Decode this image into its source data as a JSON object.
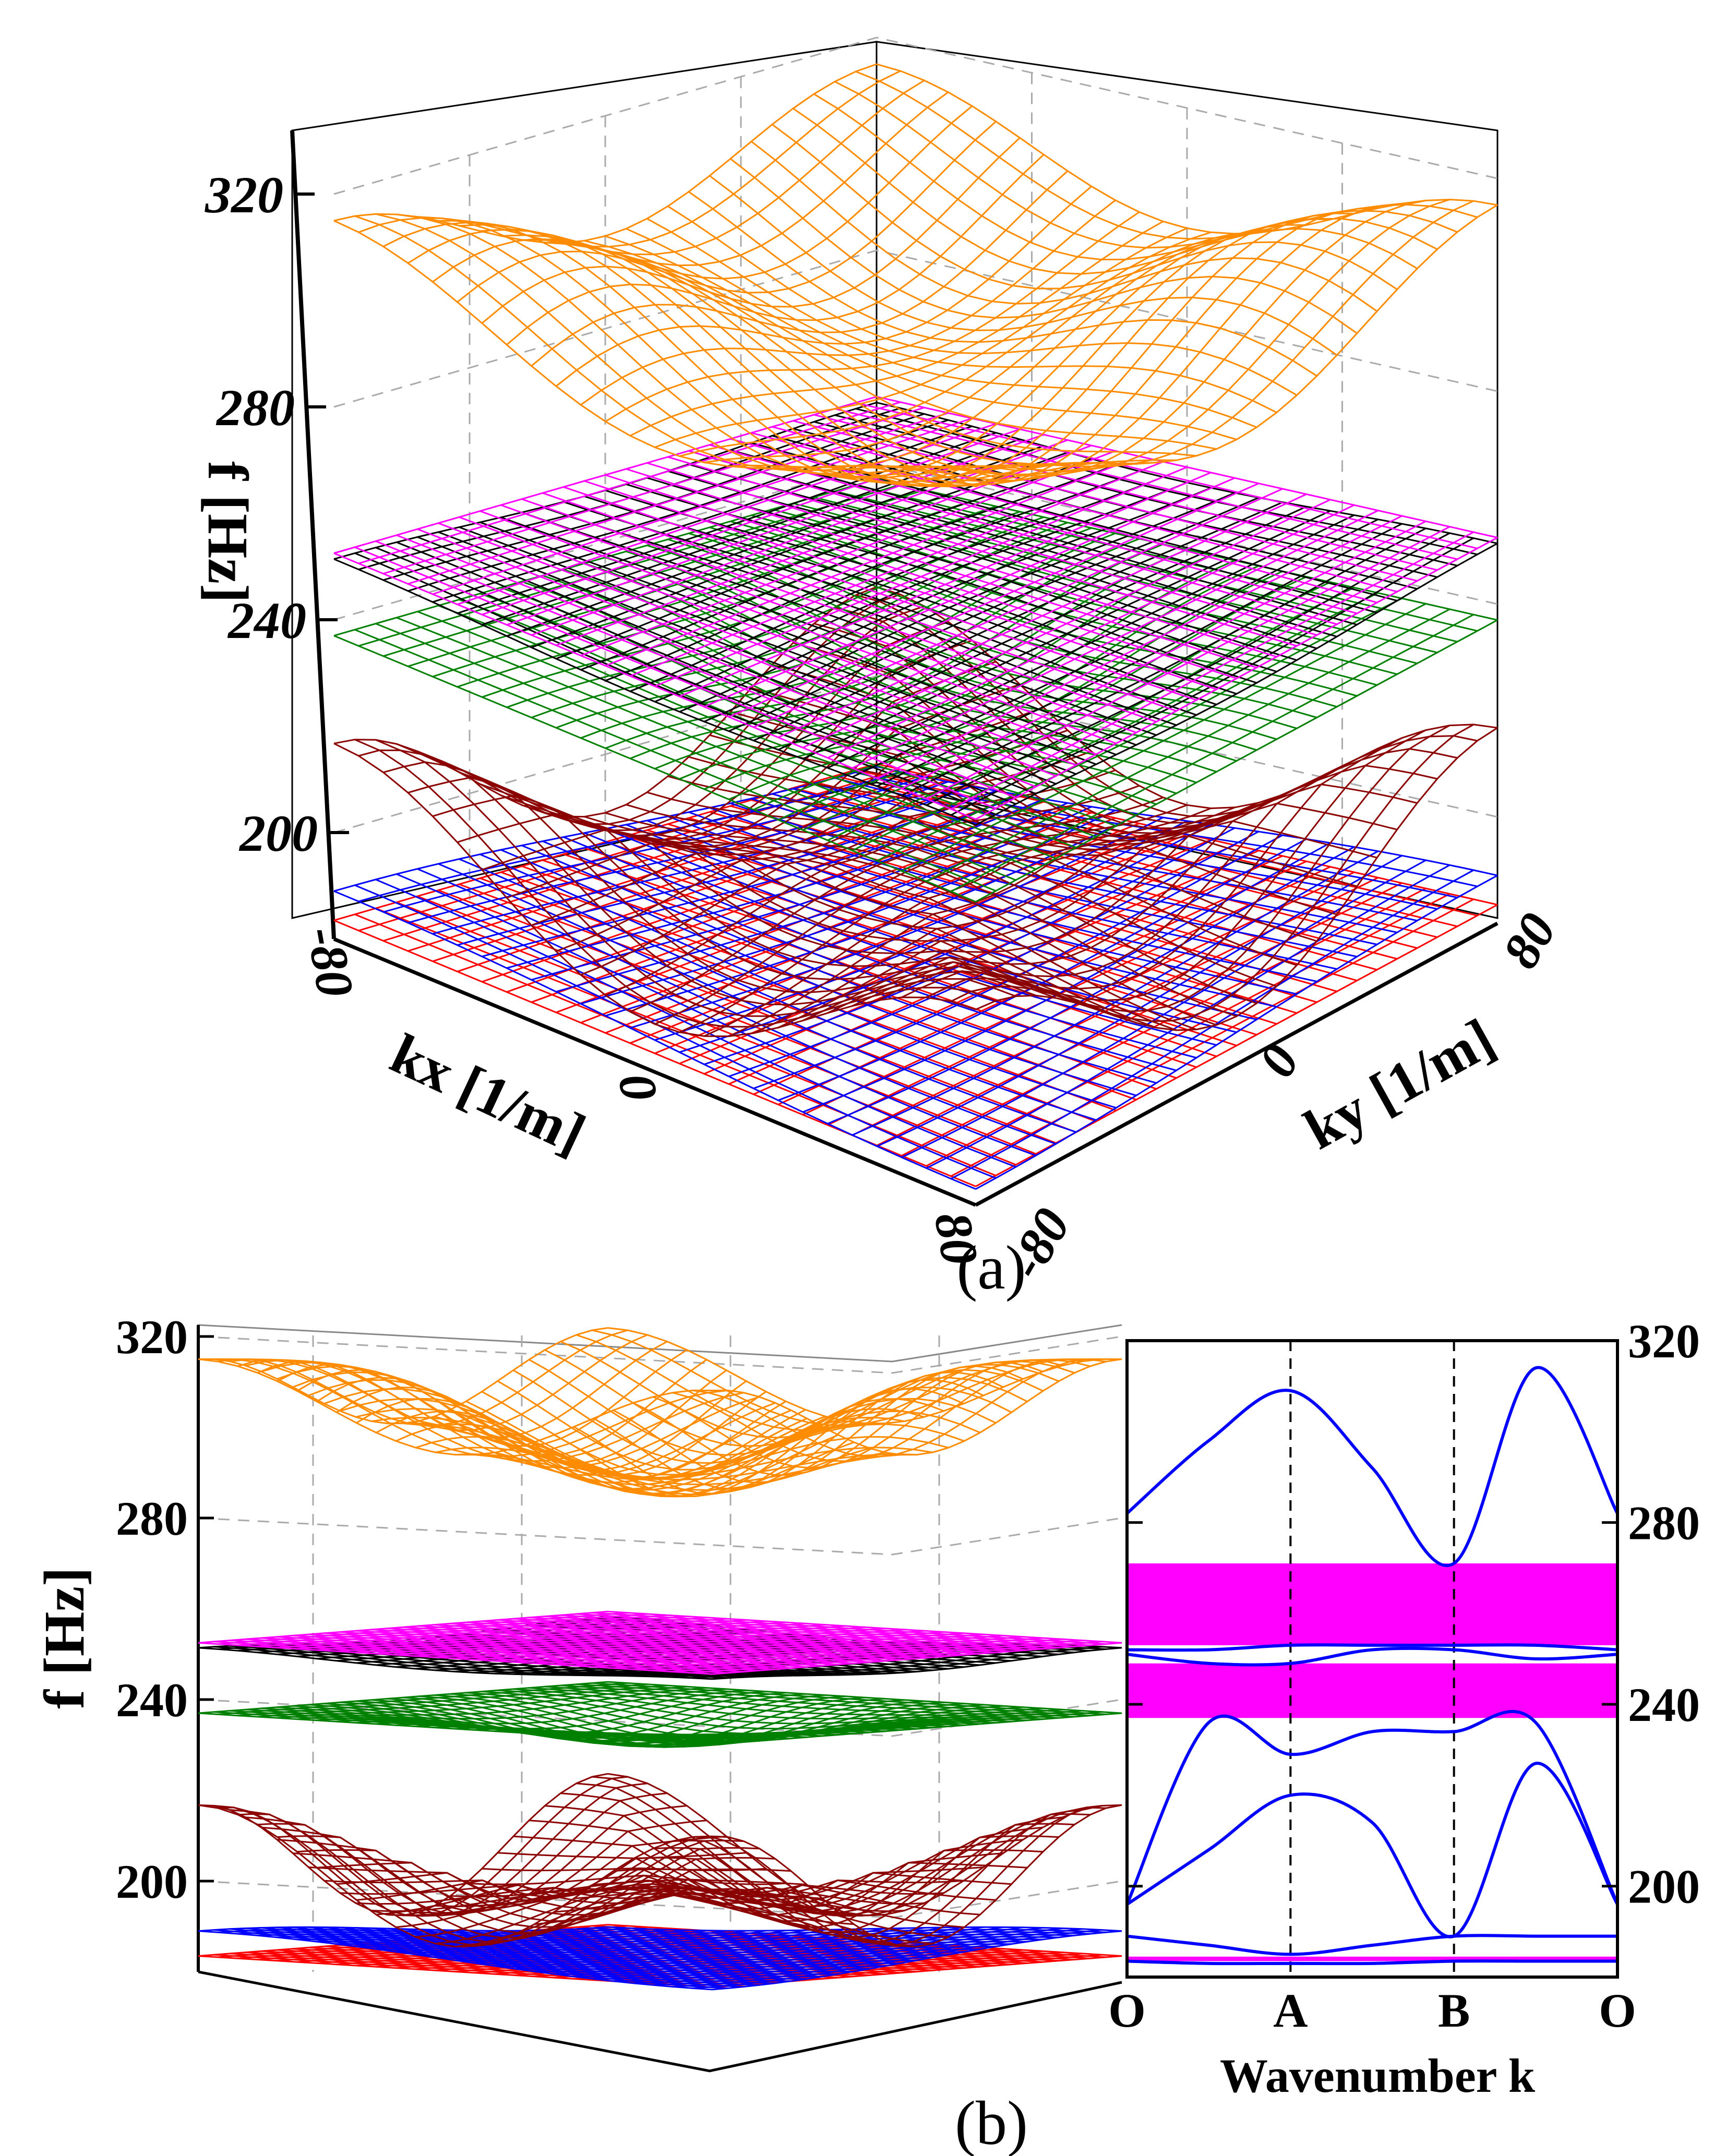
{
  "figure": {
    "panel_a_label": "(a)",
    "panel_b_label": "(b)"
  },
  "chart_data": [
    {
      "type": "surface",
      "panel": "(a)",
      "zlabel": "f [Hz]",
      "xlabel": "kx [1/m]",
      "ylabel": "ky [1/m]",
      "z_ticks": [
        "200",
        "240",
        "280",
        "320"
      ],
      "x_ticks": [
        "-80",
        "0",
        "80"
      ],
      "y_ticks": [
        "-80",
        "0",
        "80"
      ],
      "zlim": [
        180,
        320
      ],
      "xlim": [
        -80,
        80
      ],
      "ylim": [
        -80,
        80
      ],
      "grid": true,
      "series": [
        {
          "color": "#ff0000",
          "min": 183,
          "max": 184
        },
        {
          "color": "#0000ff",
          "min": 183,
          "max": 189
        },
        {
          "color": "#8b0000",
          "min": 189,
          "max": 226
        },
        {
          "color": "#008000",
          "min": 225,
          "max": 237
        },
        {
          "color": "#000000",
          "min": 249,
          "max": 252
        },
        {
          "color": "#ff00ff",
          "min": 252,
          "max": 253
        },
        {
          "color": "#ff8c00",
          "min": 271,
          "max": 315
        }
      ]
    },
    {
      "type": "surface",
      "panel": "(b)",
      "zlabel": "f [Hz]",
      "z_ticks": [
        "200",
        "240",
        "280",
        "320"
      ],
      "zlim": [
        180,
        320
      ],
      "grid": true,
      "view": "side"
    },
    {
      "type": "line",
      "panel": "(b)",
      "xlabel": "Wavenumber k",
      "x_ticks": [
        "O",
        "A",
        "B",
        "O"
      ],
      "y_ticks": [
        "200",
        "240",
        "280",
        "320"
      ],
      "ylim": [
        180,
        320
      ],
      "x": [
        0,
        0.5,
        1,
        1.5,
        2,
        2.5,
        3
      ],
      "series": [
        {
          "color": "#0000ff",
          "values": [
            183.5,
            183,
            183,
            183,
            183.5,
            183.5,
            183.5
          ]
        },
        {
          "color": "#0000ff",
          "values": [
            189,
            187,
            185,
            187,
            189,
            189,
            189
          ]
        },
        {
          "color": "#0000ff",
          "values": [
            196,
            208,
            220,
            214,
            189,
            227,
            196
          ]
        },
        {
          "color": "#0000ff",
          "values": [
            196,
            236,
            229,
            234,
            234,
            236,
            196
          ]
        },
        {
          "color": "#0000ff",
          "values": [
            251,
            249,
            249,
            252,
            252,
            250,
            251
          ]
        },
        {
          "color": "#0000ff",
          "values": [
            252,
            252,
            253,
            253,
            253,
            253,
            252
          ]
        },
        {
          "color": "#0000ff",
          "values": [
            282,
            298,
            309,
            292,
            271,
            314,
            282
          ]
        }
      ],
      "bands": [
        {
          "color": "#ff00ff",
          "from": 237,
          "to": 249
        },
        {
          "color": "#ff00ff",
          "from": 253,
          "to": 271
        },
        {
          "color": "#ff00ff",
          "from": 183.5,
          "to": 184.5
        }
      ]
    }
  ]
}
